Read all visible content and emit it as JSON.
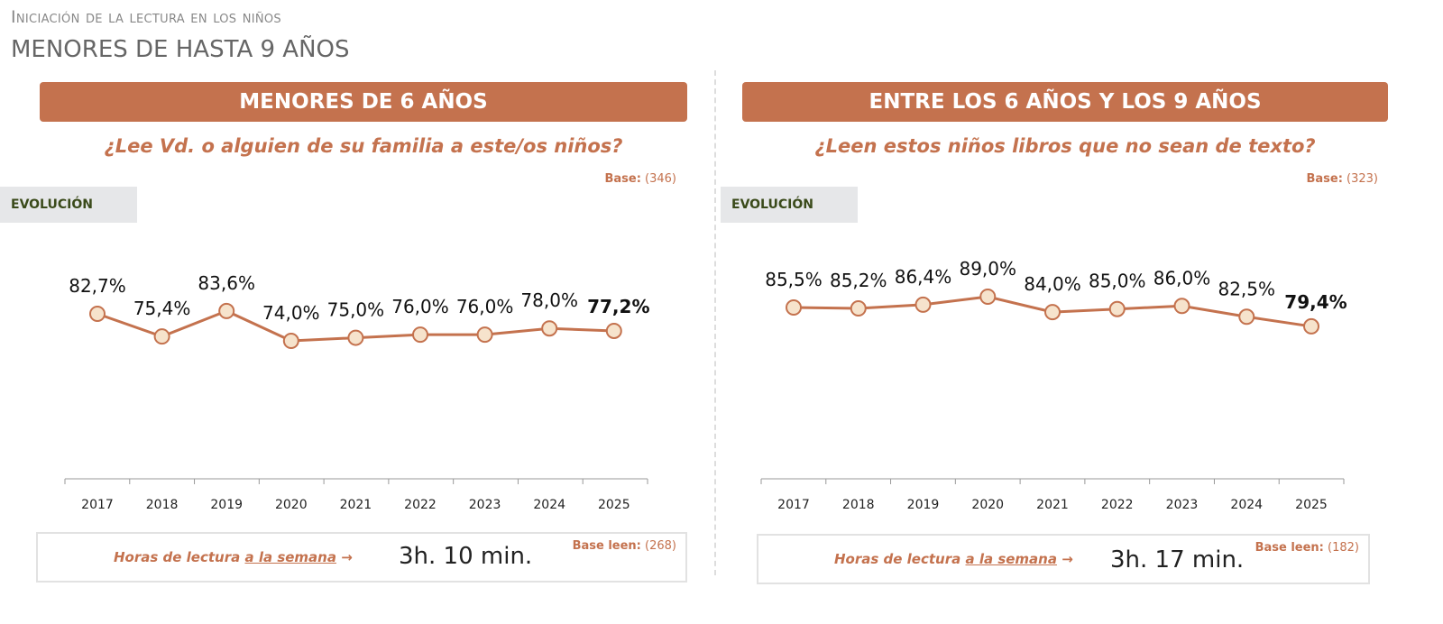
{
  "header": {
    "supertitle": "Iniciación de la lectura en los niños",
    "title": "MENORES DE HASTA 9 AÑOS"
  },
  "panels": [
    {
      "banner": "MENORES DE 6 AÑOS",
      "question": "¿Lee Vd. o alguien de su familia a este/os niños?",
      "base_label": "Base:",
      "base_value": "(346)",
      "evolution": "EVOLUCIÓN",
      "hours_label": "Horas de lectura",
      "hours_link": "a la semana",
      "arrow": "→",
      "hours_value": "3h. 10 min.",
      "base_leen_label": "Base leen:",
      "base_leen_value": "(268)"
    },
    {
      "banner": "ENTRE LOS 6 AÑOS Y LOS 9 AÑOS",
      "question": "¿Leen estos niños libros que no sean de texto?",
      "base_label": "Base:",
      "base_value": "(323)",
      "evolution": "EVOLUCIÓN",
      "hours_label": "Horas de lectura",
      "hours_link": "a la semana",
      "arrow": "→",
      "hours_value": "3h. 17 min.",
      "base_leen_label": "Base leen:",
      "base_leen_value": "(182)"
    }
  ],
  "colors": {
    "accent": "#c4724e",
    "marker_fill": "#f6e3cc"
  },
  "chart_data": [
    {
      "type": "line",
      "title": "¿Lee Vd. o alguien de su familia a este/os niños?",
      "categories": [
        "2017",
        "2018",
        "2019",
        "2020",
        "2021",
        "2022",
        "2023",
        "2024",
        "2025"
      ],
      "values": [
        82.7,
        75.4,
        83.6,
        74.0,
        75.0,
        76.0,
        76.0,
        78.0,
        77.2
      ],
      "labels": [
        "82,7%",
        "75,4%",
        "83,6%",
        "74,0%",
        "75,0%",
        "76,0%",
        "76,0%",
        "78,0%",
        "77,2%"
      ],
      "unit": "%",
      "grid": false
    },
    {
      "type": "line",
      "title": "¿Leen estos niños libros que no sean de texto?",
      "categories": [
        "2017",
        "2018",
        "2019",
        "2020",
        "2021",
        "2022",
        "2023",
        "2024",
        "2025"
      ],
      "values": [
        85.5,
        85.2,
        86.4,
        89.0,
        84.0,
        85.0,
        86.0,
        82.5,
        79.4
      ],
      "labels": [
        "85,5%",
        "85,2%",
        "86,4%",
        "89,0%",
        "84,0%",
        "85,0%",
        "86,0%",
        "82,5%",
        "79,4%"
      ],
      "unit": "%",
      "grid": false
    }
  ]
}
